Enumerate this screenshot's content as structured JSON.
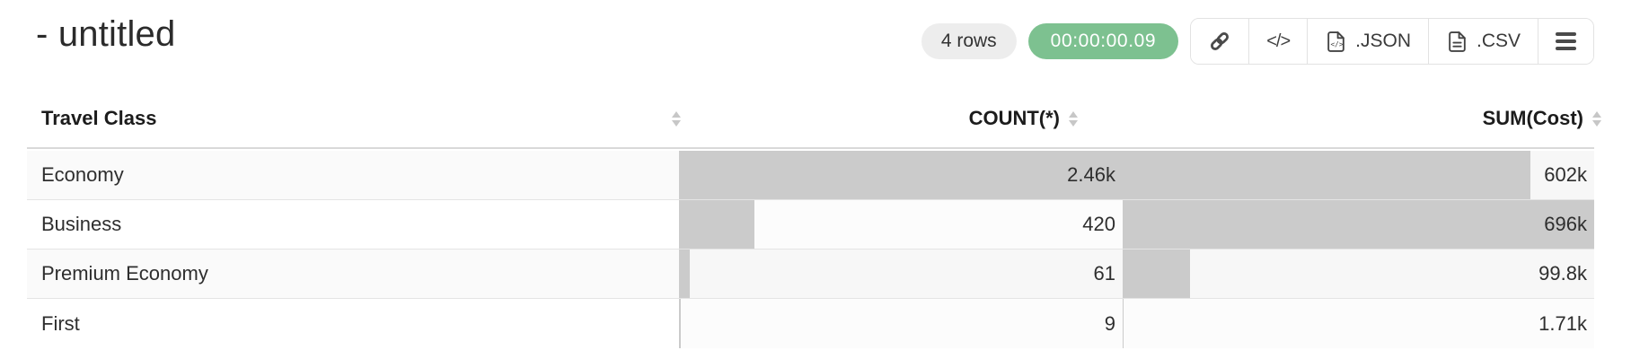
{
  "header": {
    "title": "- untitled",
    "rows_badge": "4 rows",
    "timer_badge": "00:00:00.09"
  },
  "toolbar": {
    "code_label": "</>",
    "json_label": ".JSON",
    "csv_label": ".CSV"
  },
  "table": {
    "columns": [
      {
        "label": "Travel Class",
        "align": "left"
      },
      {
        "label": "COUNT(*)",
        "align": "right"
      },
      {
        "label": "SUM(Cost)",
        "align": "right"
      }
    ]
  },
  "colors": {
    "timer_badge_bg": "#7dc190",
    "rows_badge_bg": "#ededed",
    "data_bar": "#cbcbcb",
    "row_alt_bg": "#fafafa",
    "row_separator": "#e4e4e4"
  },
  "chart_data": {
    "type": "table",
    "columns": [
      "Travel Class",
      "COUNT(*)",
      "SUM(Cost)"
    ],
    "rows": [
      {
        "travel_class": "Economy",
        "count": 2460,
        "count_display": "2.46k",
        "sum_cost": 602000,
        "sum_display": "602k"
      },
      {
        "travel_class": "Business",
        "count": 420,
        "count_display": "420",
        "sum_cost": 696000,
        "sum_display": "696k"
      },
      {
        "travel_class": "Premium Economy",
        "count": 61,
        "count_display": "61",
        "sum_cost": 99800,
        "sum_display": "99.8k"
      },
      {
        "travel_class": "First",
        "count": 9,
        "count_display": "9",
        "sum_cost": 1710,
        "sum_display": "1.71k"
      }
    ],
    "bar_max": {
      "count": 2460,
      "sum_cost": 696000
    }
  }
}
